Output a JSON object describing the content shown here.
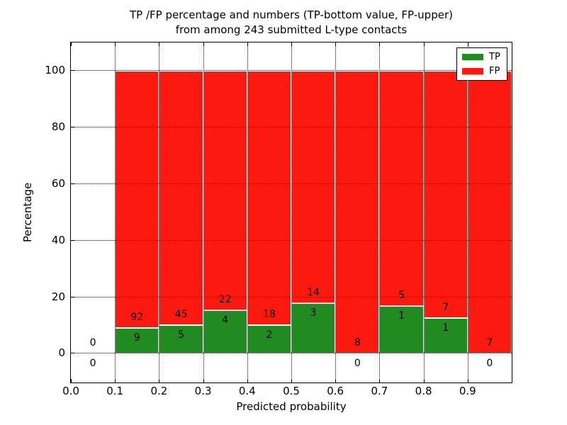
{
  "title": {
    "line1": "TP /FP percentage and numbers (TP-bottom value, FP-upper)",
    "line2": "from among 243 submitted L-type contacts"
  },
  "chart_data": {
    "type": "bar",
    "stacked": true,
    "title": "TP /FP percentage and numbers (TP-bottom value, FP-upper) from among 243 submitted L-type contacts",
    "xlabel": "Predicted probability",
    "ylabel": "Percentage",
    "xlim": [
      0.0,
      1.0
    ],
    "ylim": [
      -10.3,
      110.0
    ],
    "xticks": [
      "0.0",
      "0.1",
      "0.2",
      "0.3",
      "0.4",
      "0.5",
      "0.6",
      "0.7",
      "0.8",
      "0.9"
    ],
    "yticks": [
      0,
      20,
      40,
      60,
      80,
      100
    ],
    "grid": true,
    "grid_style": "dotted",
    "total_contacts": 243,
    "colors": {
      "tp": "#218a21",
      "fp": "#fc1a10"
    },
    "legend": {
      "position": "upper right",
      "entries": [
        {
          "label": "TP",
          "color_key": "tp"
        },
        {
          "label": "FP",
          "color_key": "fp"
        }
      ]
    },
    "series": [
      {
        "name": "TP",
        "values_pct": [
          0,
          8.91,
          10.0,
          15.38,
          10.0,
          17.65,
          0,
          16.67,
          12.5,
          0
        ]
      },
      {
        "name": "FP",
        "values_pct": [
          0,
          91.09,
          90.0,
          84.62,
          90.0,
          82.35,
          100.0,
          83.33,
          87.5,
          100.0
        ]
      }
    ],
    "bins": [
      {
        "x_start": 0.0,
        "x_end": 0.1,
        "tp_count": 0,
        "fp_count": 0
      },
      {
        "x_start": 0.1,
        "x_end": 0.2,
        "tp_count": 9,
        "fp_count": 92
      },
      {
        "x_start": 0.2,
        "x_end": 0.3,
        "tp_count": 5,
        "fp_count": 45
      },
      {
        "x_start": 0.3,
        "x_end": 0.4,
        "tp_count": 4,
        "fp_count": 22
      },
      {
        "x_start": 0.4,
        "x_end": 0.5,
        "tp_count": 2,
        "fp_count": 18
      },
      {
        "x_start": 0.5,
        "x_end": 0.6,
        "tp_count": 3,
        "fp_count": 14
      },
      {
        "x_start": 0.6,
        "x_end": 0.7,
        "tp_count": 0,
        "fp_count": 8
      },
      {
        "x_start": 0.7,
        "x_end": 0.8,
        "tp_count": 1,
        "fp_count": 5
      },
      {
        "x_start": 0.8,
        "x_end": 0.9,
        "tp_count": 1,
        "fp_count": 7
      },
      {
        "x_start": 0.9,
        "x_end": 1.0,
        "tp_count": 0,
        "fp_count": 7
      }
    ]
  }
}
